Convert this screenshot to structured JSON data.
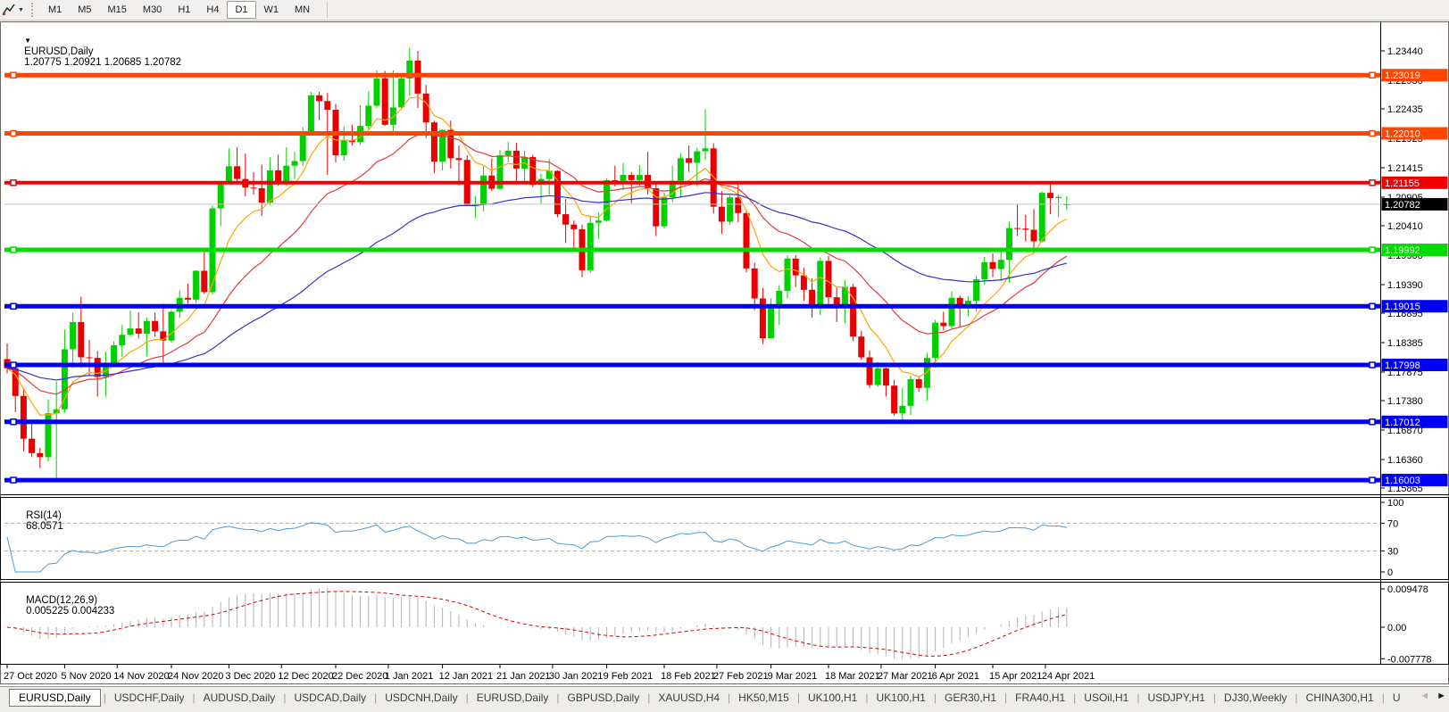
{
  "toolbar": {
    "dropdown_caret": "▼",
    "timeframes": [
      "M1",
      "M5",
      "M15",
      "M30",
      "H1",
      "H4",
      "D1",
      "W1",
      "MN"
    ],
    "active_timeframe": "D1"
  },
  "chart": {
    "window_caret": "▼",
    "symbol_label": "EURUSD,Daily",
    "quote": "1.20775 1.20921 1.20685 1.20782"
  },
  "price_axis": {
    "ticks": [
      "1.23440",
      "1.22930",
      "1.22435",
      "1.21925",
      "1.21415",
      "1.20905",
      "1.20410",
      "1.19900",
      "1.19390",
      "1.18895",
      "1.18385",
      "1.17875",
      "1.17380",
      "1.16870",
      "1.16360",
      "1.15865"
    ],
    "current": {
      "value": "1.20782",
      "bg": "#000000",
      "text_color": "#ffffff"
    }
  },
  "levels": [
    {
      "value": "1.23019",
      "price": 1.23019,
      "color": "#FF4500",
      "width": 5
    },
    {
      "value": "1.22010",
      "price": 1.2201,
      "color": "#FF4500",
      "width": 5
    },
    {
      "value": "1.21155",
      "price": 1.21155,
      "color": "#F20000",
      "width": 4
    },
    {
      "value": "1.19992",
      "price": 1.19992,
      "color": "#00DC00",
      "width": 5
    },
    {
      "value": "1.19015",
      "price": 1.19015,
      "color": "#0000F5",
      "width": 5
    },
    {
      "value": "1.17998",
      "price": 1.17998,
      "color": "#0000F5",
      "width": 5
    },
    {
      "value": "1.17012",
      "price": 1.17012,
      "color": "#0000F5",
      "width": 5
    },
    {
      "value": "1.16003",
      "price": 1.16003,
      "color": "#0000F5",
      "width": 5
    }
  ],
  "chart_data": {
    "type": "candlestick",
    "symbol": "EURUSD",
    "timeframe": "Daily",
    "title": "EURUSD,Daily 1.20775 1.20921 1.20685 1.20782",
    "price_range": {
      "top": 1.2344,
      "bottom": 1.15865
    },
    "x_ticks": [
      {
        "label": "27 Oct 2020",
        "i": 0
      },
      {
        "label": "5 Nov 2020",
        "i": 7
      },
      {
        "label": "14 Nov 2020",
        "i": 13.4
      },
      {
        "label": "24 Nov 2020",
        "i": 20
      },
      {
        "label": "3 Dec 2020",
        "i": 27
      },
      {
        "label": "12 Dec 2020",
        "i": 33.4
      },
      {
        "label": "22 Dec 2020",
        "i": 40
      },
      {
        "label": "1 Jan 2021",
        "i": 46.4
      },
      {
        "label": "12 Jan 2021",
        "i": 53
      },
      {
        "label": "21 Jan 2021",
        "i": 60
      },
      {
        "label": "30 Jan 2021",
        "i": 66.4
      },
      {
        "label": "9 Feb 2021",
        "i": 73
      },
      {
        "label": "18 Feb 2021",
        "i": 80
      },
      {
        "label": "27 Feb 2021",
        "i": 86.4
      },
      {
        "label": "9 Mar 2021",
        "i": 93
      },
      {
        "label": "18 Mar 2021",
        "i": 100
      },
      {
        "label": "27 Mar 2021",
        "i": 106.4
      },
      {
        "label": "6 Apr 2021",
        "i": 113
      },
      {
        "label": "15 Apr 2021",
        "i": 120
      },
      {
        "label": "24 Apr 2021",
        "i": 126.4
      }
    ],
    "candles": [
      [
        1.181,
        1.1837,
        1.1785,
        1.1794
      ],
      [
        1.1794,
        1.18,
        1.1718,
        1.1746
      ],
      [
        1.1746,
        1.1759,
        1.165,
        1.1672
      ],
      [
        1.1672,
        1.1704,
        1.164,
        1.1647
      ],
      [
        1.1647,
        1.1656,
        1.1621,
        1.164
      ],
      [
        1.164,
        1.174,
        1.1633,
        1.1716
      ],
      [
        1.1716,
        1.1771,
        1.1603,
        1.1723
      ],
      [
        1.1723,
        1.1861,
        1.1717,
        1.1827
      ],
      [
        1.1827,
        1.189,
        1.1795,
        1.1874
      ],
      [
        1.1874,
        1.1918,
        1.1795,
        1.1813
      ],
      [
        1.1813,
        1.1843,
        1.1781,
        1.1812
      ],
      [
        1.1812,
        1.1824,
        1.1745,
        1.1779
      ],
      [
        1.1779,
        1.1823,
        1.1746,
        1.1803
      ],
      [
        1.1803,
        1.1841,
        1.1799,
        1.1834
      ],
      [
        1.1834,
        1.1869,
        1.1814,
        1.1852
      ],
      [
        1.1852,
        1.1894,
        1.1849,
        1.1863
      ],
      [
        1.1863,
        1.1891,
        1.1846,
        1.1854
      ],
      [
        1.1854,
        1.1882,
        1.1815,
        1.1876
      ],
      [
        1.1876,
        1.189,
        1.1849,
        1.1858
      ],
      [
        1.1858,
        1.1906,
        1.18,
        1.1842
      ],
      [
        1.1842,
        1.1895,
        1.1838,
        1.1892
      ],
      [
        1.1892,
        1.1929,
        1.1881,
        1.1916
      ],
      [
        1.1916,
        1.1941,
        1.1906,
        1.1913
      ],
      [
        1.1913,
        1.1964,
        1.1907,
        1.1963
      ],
      [
        1.1963,
        1.2003,
        1.1923,
        1.1926
      ],
      [
        1.1926,
        1.2076,
        1.1922,
        1.2071
      ],
      [
        1.2071,
        1.2118,
        1.204,
        1.2115
      ],
      [
        1.2115,
        1.2175,
        1.2113,
        1.2144
      ],
      [
        1.2144,
        1.2177,
        1.2116,
        1.2122
      ],
      [
        1.2122,
        1.2166,
        1.2092,
        1.2107
      ],
      [
        1.2107,
        1.2134,
        1.2095,
        1.2106
      ],
      [
        1.2106,
        1.2147,
        1.2058,
        1.2081
      ],
      [
        1.2081,
        1.2159,
        1.2076,
        1.2137
      ],
      [
        1.2137,
        1.2164,
        1.211,
        1.2113
      ],
      [
        1.2113,
        1.2177,
        1.211,
        1.2145
      ],
      [
        1.2145,
        1.2169,
        1.2122,
        1.2153
      ],
      [
        1.2153,
        1.2212,
        1.2145,
        1.2202
      ],
      [
        1.2202,
        1.2273,
        1.2197,
        1.2267
      ],
      [
        1.2267,
        1.2273,
        1.2224,
        1.2257
      ],
      [
        1.2257,
        1.2271,
        1.2129,
        1.2242
      ],
      [
        1.2242,
        1.2252,
        1.2151,
        1.2163
      ],
      [
        1.2163,
        1.2213,
        1.2154,
        1.2189
      ],
      [
        1.2189,
        1.2216,
        1.218,
        1.2186
      ],
      [
        1.2186,
        1.225,
        1.2181,
        1.2214
      ],
      [
        1.2214,
        1.2274,
        1.2208,
        1.2249
      ],
      [
        1.2249,
        1.231,
        1.2245,
        1.2296
      ],
      [
        1.2296,
        1.2309,
        1.2214,
        1.2216
      ],
      [
        1.2216,
        1.231,
        1.22,
        1.2246
      ],
      [
        1.2246,
        1.2303,
        1.2245,
        1.2296
      ],
      [
        1.2296,
        1.2349,
        1.2266,
        1.2327
      ],
      [
        1.2327,
        1.2344,
        1.2245,
        1.227
      ],
      [
        1.227,
        1.2285,
        1.2193,
        1.222
      ],
      [
        1.222,
        1.2223,
        1.2132,
        1.2152
      ],
      [
        1.2152,
        1.2208,
        1.2137,
        1.2207
      ],
      [
        1.2207,
        1.2223,
        1.214,
        1.2158
      ],
      [
        1.2158,
        1.218,
        1.2111,
        1.2155
      ],
      [
        1.2155,
        1.2163,
        1.2075,
        1.2077
      ],
      [
        1.2077,
        1.2092,
        1.2054,
        1.2078
      ],
      [
        1.2078,
        1.2145,
        1.2066,
        1.2128
      ],
      [
        1.2128,
        1.2158,
        1.2101,
        1.2105
      ],
      [
        1.2105,
        1.2173,
        1.2103,
        1.2163
      ],
      [
        1.2163,
        1.2186,
        1.2151,
        1.2171
      ],
      [
        1.2171,
        1.2185,
        1.2116,
        1.214
      ],
      [
        1.214,
        1.2171,
        1.2118,
        1.216
      ],
      [
        1.216,
        1.2164,
        1.2108,
        1.2112
      ],
      [
        1.2112,
        1.2131,
        1.2078,
        1.2122
      ],
      [
        1.2122,
        1.2157,
        1.2095,
        1.2136
      ],
      [
        1.2136,
        1.2137,
        1.2056,
        1.2061
      ],
      [
        1.2061,
        1.2087,
        1.2011,
        1.2043
      ],
      [
        1.2043,
        1.205,
        1.2003,
        1.2035
      ],
      [
        1.2035,
        1.2043,
        1.1952,
        1.1964
      ],
      [
        1.1964,
        1.2057,
        1.1959,
        1.2046
      ],
      [
        1.2046,
        1.2064,
        1.2018,
        1.205
      ],
      [
        1.205,
        1.2123,
        1.2048,
        1.212
      ],
      [
        1.212,
        1.2145,
        1.2109,
        1.2119
      ],
      [
        1.2119,
        1.215,
        1.2102,
        1.2129
      ],
      [
        1.2129,
        1.2134,
        1.208,
        1.212
      ],
      [
        1.212,
        1.2146,
        1.211,
        1.2129
      ],
      [
        1.2129,
        1.2169,
        1.2095,
        1.2106
      ],
      [
        1.2106,
        1.2113,
        1.2023,
        1.204
      ],
      [
        1.204,
        1.2098,
        1.2036,
        1.209
      ],
      [
        1.209,
        1.2145,
        1.2082,
        1.2119
      ],
      [
        1.2119,
        1.2167,
        1.2089,
        1.2158
      ],
      [
        1.2158,
        1.218,
        1.2134,
        1.215
      ],
      [
        1.215,
        1.2176,
        1.2109,
        1.217
      ],
      [
        1.217,
        1.2243,
        1.2155,
        1.2175
      ],
      [
        1.2175,
        1.2184,
        1.2062,
        1.2074
      ],
      [
        1.2074,
        1.2101,
        1.2027,
        1.2048
      ],
      [
        1.2048,
        1.2094,
        1.2043,
        1.209
      ],
      [
        1.209,
        1.2113,
        1.2047,
        1.2063
      ],
      [
        1.2063,
        1.2069,
        1.196,
        1.1967
      ],
      [
        1.1967,
        1.1977,
        1.1894,
        1.1915
      ],
      [
        1.1915,
        1.1933,
        1.1836,
        1.1846
      ],
      [
        1.1846,
        1.1915,
        1.1846,
        1.1899
      ],
      [
        1.1899,
        1.1938,
        1.1869,
        1.1928
      ],
      [
        1.1928,
        1.199,
        1.1915,
        1.1984
      ],
      [
        1.1984,
        1.199,
        1.1935,
        1.1955
      ],
      [
        1.1955,
        1.1968,
        1.1911,
        1.193
      ],
      [
        1.193,
        1.195,
        1.1882,
        1.19
      ],
      [
        1.19,
        1.1986,
        1.1886,
        1.198
      ],
      [
        1.198,
        1.1989,
        1.1906,
        1.1917
      ],
      [
        1.1917,
        1.1935,
        1.1874,
        1.1903
      ],
      [
        1.1903,
        1.1947,
        1.1872,
        1.1935
      ],
      [
        1.1935,
        1.194,
        1.1841,
        1.1849
      ],
      [
        1.1849,
        1.1859,
        1.1809,
        1.1813
      ],
      [
        1.1813,
        1.1825,
        1.176,
        1.1765
      ],
      [
        1.1765,
        1.1805,
        1.1762,
        1.1794
      ],
      [
        1.1794,
        1.1795,
        1.1745,
        1.1764
      ],
      [
        1.1764,
        1.1774,
        1.1712,
        1.1716
      ],
      [
        1.1716,
        1.176,
        1.1704,
        1.1729
      ],
      [
        1.1729,
        1.1781,
        1.1713,
        1.1775
      ],
      [
        1.1775,
        1.178,
        1.1753,
        1.176
      ],
      [
        1.176,
        1.1821,
        1.1738,
        1.1812
      ],
      [
        1.1812,
        1.1878,
        1.1795,
        1.1873
      ],
      [
        1.1873,
        1.1892,
        1.186,
        1.1867
      ],
      [
        1.1867,
        1.1927,
        1.1861,
        1.1916
      ],
      [
        1.1916,
        1.192,
        1.1865,
        1.1899
      ],
      [
        1.1899,
        1.1919,
        1.1884,
        1.1911
      ],
      [
        1.1911,
        1.1954,
        1.1893,
        1.1948
      ],
      [
        1.1948,
        1.1987,
        1.1939,
        1.1978
      ],
      [
        1.1978,
        1.1993,
        1.1952,
        1.1966
      ],
      [
        1.1966,
        1.1996,
        1.1945,
        1.1982
      ],
      [
        1.1982,
        1.2048,
        1.1942,
        1.2037
      ],
      [
        1.2037,
        1.2079,
        1.2023,
        1.2036
      ],
      [
        1.2036,
        1.206,
        1.2014,
        1.2034
      ],
      [
        1.2034,
        1.207,
        1.1994,
        1.2014
      ],
      [
        1.2014,
        1.21,
        1.2012,
        1.2098
      ],
      [
        1.2098,
        1.2117,
        1.2061,
        1.2089
      ],
      [
        1.2089,
        1.2095,
        1.2056,
        1.2091
      ],
      [
        1.20775,
        1.20921,
        1.20685,
        1.20782
      ]
    ],
    "overlays": [
      {
        "name": "ma-fast",
        "type": "ema",
        "period": 8,
        "color": "#FFA500"
      },
      {
        "name": "ma-mid",
        "type": "ema",
        "period": 21,
        "color": "#E03C3C"
      },
      {
        "name": "ma-slow",
        "type": "ema",
        "period": 55,
        "color": "#3333CC"
      }
    ]
  },
  "rsi": {
    "label": "RSI(14)",
    "value": "68.0571",
    "axis": [
      "100",
      "70",
      "30",
      "0"
    ],
    "upper": 70,
    "lower": 30,
    "line_color": "#4D9BD5"
  },
  "macd": {
    "label": "MACD(12,26,9)",
    "values": "0.005225 0.004233",
    "axis_max": "0.009478",
    "axis_zero": "0.00",
    "axis_min": "-0.007778",
    "hist_color": "#B2B2B2",
    "signal_color": "#D40000"
  },
  "tabs": {
    "separator": "|",
    "items": [
      "EURUSD,Daily",
      "USDCHF,Daily",
      "AUDUSD,Daily",
      "USDCAD,Daily",
      "USDCNH,Daily",
      "EURUSD,Daily",
      "GBPUSD,Daily",
      "XAUUSD,H4",
      "HK50,M15",
      "UK100,H1",
      "UK100,H1",
      "GER30,H1",
      "FRA40,H1",
      "USOil,H1",
      "USDJPY,H1",
      "DJ30,Weekly",
      "CHINA300,H1",
      "U"
    ],
    "active_index": 0,
    "scroll_left": "◄",
    "scroll_right": "►"
  },
  "colors": {
    "candle_up": "#00D000",
    "candle_down": "#E80000",
    "current_price_line": "#C4C4C4",
    "panel_border": "#000000",
    "rsi_guide": "#ababab"
  }
}
